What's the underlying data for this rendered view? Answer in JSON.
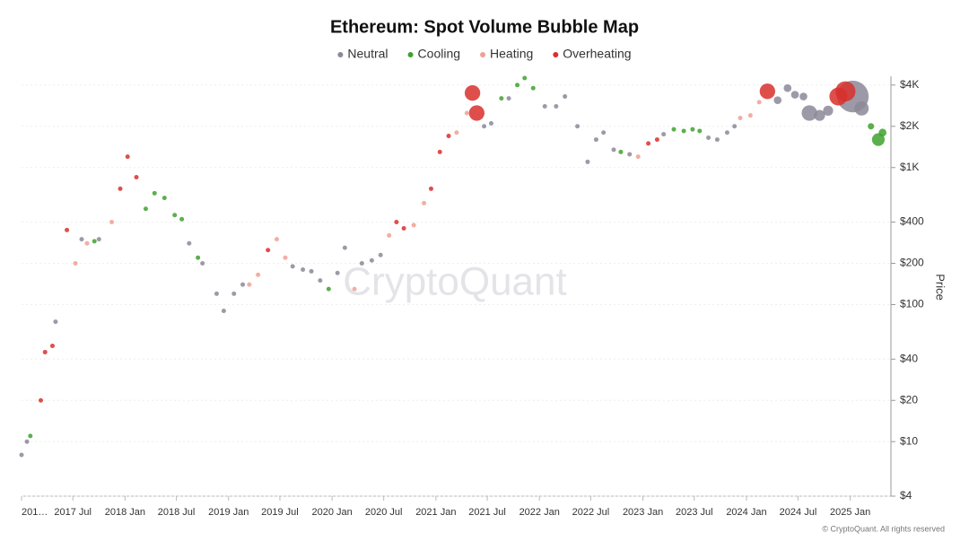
{
  "chart_data": {
    "type": "bubble",
    "title": "Ethereum: Spot Volume Bubble Map",
    "y_label": "Price",
    "watermark": "CryptoQuant",
    "footer": "© CryptoQuant. All rights reserved",
    "log_y": true,
    "grid": true,
    "legend": "top",
    "xlim": [
      "2017-01-01",
      "2025-05-15"
    ],
    "xticks": [
      {
        "value": "2017-01-01",
        "label": "201…"
      },
      {
        "value": "2017-07-01",
        "label": "2017 Jul"
      },
      {
        "value": "2018-01-01",
        "label": "2018 Jan"
      },
      {
        "value": "2018-07-01",
        "label": "2018 Jul"
      },
      {
        "value": "2019-01-01",
        "label": "2019 Jan"
      },
      {
        "value": "2019-07-01",
        "label": "2019 Jul"
      },
      {
        "value": "2020-01-01",
        "label": "2020 Jan"
      },
      {
        "value": "2020-07-01",
        "label": "2020 Jul"
      },
      {
        "value": "2021-01-01",
        "label": "2021 Jan"
      },
      {
        "value": "2021-07-01",
        "label": "2021 Jul"
      },
      {
        "value": "2022-01-01",
        "label": "2022 Jan"
      },
      {
        "value": "2022-07-01",
        "label": "2022 Jul"
      },
      {
        "value": "2023-01-01",
        "label": "2023 Jan"
      },
      {
        "value": "2023-07-01",
        "label": "2023 Jul"
      },
      {
        "value": "2024-01-01",
        "label": "2024 Jan"
      },
      {
        "value": "2024-07-01",
        "label": "2024 Jul"
      },
      {
        "value": "2025-01-01",
        "label": "2025 Jan"
      }
    ],
    "ylim": [
      4,
      5000
    ],
    "yticks": [
      {
        "value": 4,
        "label": "$4"
      },
      {
        "value": 10,
        "label": "$10"
      },
      {
        "value": 20,
        "label": "$20"
      },
      {
        "value": 40,
        "label": "$40"
      },
      {
        "value": 100,
        "label": "$100"
      },
      {
        "value": 200,
        "label": "$200"
      },
      {
        "value": 400,
        "label": "$400"
      },
      {
        "value": 1000,
        "label": "$1K"
      },
      {
        "value": 2000,
        "label": "$2K"
      },
      {
        "value": 4000,
        "label": "$4K"
      }
    ],
    "series": [
      {
        "name": "Neutral",
        "color": "#8c8898",
        "x": [
          "2017-01-01",
          "2017-01-20",
          "2017-05-01",
          "2017-08-01",
          "2017-10-01",
          "2018-08-15",
          "2018-10-01",
          "2018-11-20",
          "2018-12-15",
          "2019-01-20",
          "2019-02-20",
          "2019-08-15",
          "2019-09-20",
          "2019-10-20",
          "2019-11-20",
          "2020-01-20",
          "2020-02-15",
          "2020-04-15",
          "2020-05-20",
          "2020-06-20",
          "2021-06-20",
          "2021-07-15",
          "2021-09-15",
          "2022-01-20",
          "2022-03-01",
          "2022-04-01",
          "2022-05-15",
          "2022-06-20",
          "2022-07-20",
          "2022-08-15",
          "2022-09-20",
          "2022-11-15",
          "2023-03-15",
          "2023-08-20",
          "2023-09-20",
          "2023-10-25",
          "2023-11-20",
          "2024-04-20",
          "2024-05-25",
          "2024-06-20",
          "2024-07-20",
          "2024-08-10",
          "2024-09-15",
          "2024-10-15",
          "2025-01-10",
          "2025-02-10"
        ],
        "values": [
          8,
          10,
          75,
          300,
          300,
          280,
          200,
          120,
          90,
          120,
          140,
          190,
          180,
          175,
          150,
          170,
          260,
          200,
          210,
          230,
          2000,
          2100,
          3200,
          2800,
          2800,
          3300,
          2000,
          1100,
          1600,
          1800,
          1350,
          1250,
          1750,
          1650,
          1600,
          1800,
          2000,
          3100,
          3800,
          3400,
          3300,
          2500,
          2400,
          2600,
          3300,
          2700
        ],
        "sizes": [
          1,
          1,
          1,
          1,
          1,
          1,
          1,
          1,
          1,
          1,
          1,
          1,
          1,
          1,
          1,
          1,
          1,
          1,
          1,
          1,
          1,
          1,
          1,
          1,
          1,
          1,
          1,
          1,
          1,
          1,
          1,
          1,
          1,
          1,
          1,
          1,
          1,
          3,
          3,
          3,
          3,
          12,
          6,
          5,
          50,
          10
        ]
      },
      {
        "name": "Cooling",
        "color": "#3ea22e",
        "x": [
          "2017-02-01",
          "2017-09-15",
          "2018-03-15",
          "2018-04-15",
          "2018-05-20",
          "2018-06-25",
          "2018-07-20",
          "2018-09-15",
          "2019-12-20",
          "2021-08-20",
          "2021-10-15",
          "2021-11-10",
          "2021-12-10",
          "2022-10-15",
          "2023-04-20",
          "2023-05-25",
          "2023-06-25",
          "2023-07-20",
          "2025-03-15",
          "2025-04-10",
          "2025-04-25"
        ],
        "values": [
          11,
          290,
          500,
          650,
          600,
          450,
          420,
          220,
          130,
          3200,
          4000,
          4500,
          3800,
          1300,
          1900,
          1850,
          1900,
          1850,
          2000,
          1600,
          1800
        ],
        "sizes": [
          1,
          1,
          1,
          1,
          1,
          1,
          1,
          1,
          1,
          1,
          1,
          1,
          1,
          1,
          1,
          1,
          1,
          1,
          2,
          8,
          3
        ]
      },
      {
        "name": "Heating",
        "color": "#f0a092",
        "x": [
          "2017-07-10",
          "2017-08-20",
          "2017-11-15",
          "2019-03-15",
          "2019-04-15",
          "2019-06-20",
          "2019-07-20",
          "2020-03-20",
          "2020-07-20",
          "2020-10-15",
          "2020-11-20",
          "2021-03-15",
          "2021-04-20",
          "2022-12-15",
          "2023-12-10",
          "2024-01-15",
          "2024-02-15"
        ],
        "values": [
          200,
          280,
          400,
          140,
          165,
          300,
          220,
          130,
          320,
          380,
          550,
          1800,
          2500,
          1200,
          2300,
          2400,
          3000
        ],
        "sizes": [
          1,
          1,
          1,
          1,
          1,
          1,
          1,
          1,
          1,
          1,
          1,
          1,
          1,
          1,
          1,
          1,
          1
        ]
      },
      {
        "name": "Overheating",
        "color": "#d8302c",
        "x": [
          "2017-03-10",
          "2017-03-25",
          "2017-04-20",
          "2017-06-10",
          "2017-12-15",
          "2018-01-10",
          "2018-02-10",
          "2019-05-20",
          "2020-08-15",
          "2020-09-10",
          "2020-12-15",
          "2021-01-15",
          "2021-02-15",
          "2021-05-10",
          "2021-05-25",
          "2023-01-20",
          "2023-02-20",
          "2024-03-15",
          "2024-11-20",
          "2024-12-15"
        ],
        "values": [
          20,
          45,
          50,
          350,
          700,
          1200,
          850,
          250,
          400,
          360,
          700,
          1300,
          1700,
          3500,
          2500,
          1500,
          1600,
          3600,
          3300,
          3600
        ],
        "sizes": [
          1,
          1,
          1,
          1,
          1,
          1,
          1,
          1,
          1,
          1,
          1,
          1,
          1,
          12,
          12,
          1,
          1,
          12,
          16,
          20
        ]
      }
    ]
  }
}
